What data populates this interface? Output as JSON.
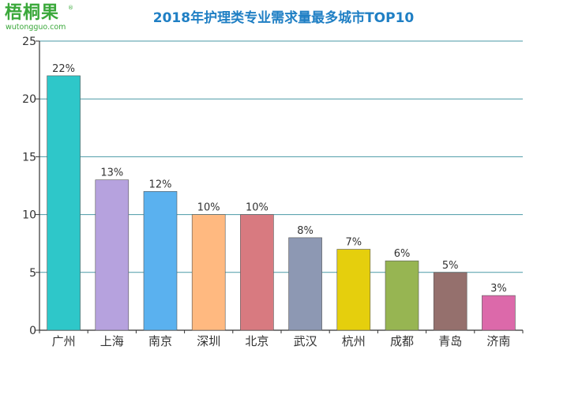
{
  "logo": {
    "name": "梧桐果",
    "reg": "®",
    "site": "wutongguo.com"
  },
  "chart_data": {
    "type": "bar",
    "title": "2018年护理类专业需求量最多城市TOP10",
    "categories": [
      "广州",
      "上海",
      "南京",
      "深圳",
      "北京",
      "武汉",
      "杭州",
      "成都",
      "青岛",
      "济南"
    ],
    "values": [
      22,
      13,
      12,
      10,
      10,
      8,
      7,
      6,
      5,
      3
    ],
    "data_labels": [
      "22%",
      "13%",
      "12%",
      "10%",
      "10%",
      "8%",
      "7%",
      "6%",
      "5%",
      "3%"
    ],
    "colors": [
      "#2ec7c9",
      "#b6a2de",
      "#5ab1ef",
      "#ffb980",
      "#d87a80",
      "#8d98b3",
      "#e5cf0d",
      "#97b552",
      "#95706d",
      "#dc69aa"
    ],
    "ylim": [
      0,
      25
    ],
    "yticks": [
      0,
      5,
      10,
      15,
      20,
      25
    ],
    "grid": true,
    "xlabel": "",
    "ylabel": ""
  }
}
